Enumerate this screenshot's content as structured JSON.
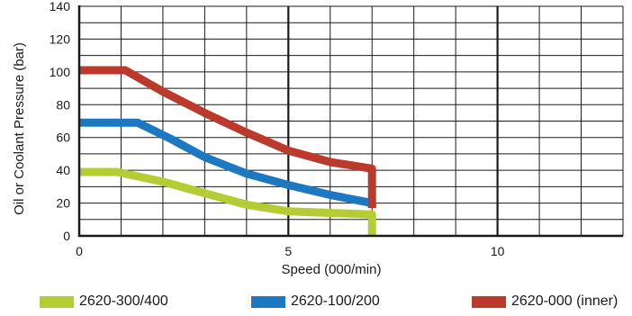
{
  "chart_data": {
    "type": "line",
    "xlabel": "Speed (000/min)",
    "ylabel": "Oil or Coolant Pressure (bar)",
    "xlim": [
      0,
      13
    ],
    "ylim": [
      0,
      140
    ],
    "x_ticks": [
      0,
      5,
      10
    ],
    "y_ticks": [
      0,
      20,
      40,
      60,
      80,
      100,
      120,
      140
    ],
    "grid": true,
    "legend_position": "bottom",
    "series": [
      {
        "name": "2620-300/400",
        "color": "#b5cc34",
        "points": [
          [
            0,
            39
          ],
          [
            0.9,
            39
          ],
          [
            2,
            33
          ],
          [
            3,
            26
          ],
          [
            4,
            19
          ],
          [
            5,
            15
          ],
          [
            6,
            14
          ],
          [
            7,
            13
          ],
          [
            7,
            0
          ]
        ]
      },
      {
        "name": "2620-100/200",
        "color": "#1c79c1",
        "points": [
          [
            0,
            69
          ],
          [
            1.4,
            69
          ],
          [
            2.2,
            59
          ],
          [
            3,
            48
          ],
          [
            4,
            38
          ],
          [
            5,
            31
          ],
          [
            6,
            25
          ],
          [
            7,
            20
          ],
          [
            7,
            17
          ]
        ]
      },
      {
        "name": "2620-000 (inner)",
        "color": "#bb3a2c",
        "points": [
          [
            0,
            101
          ],
          [
            1.1,
            101
          ],
          [
            2,
            88
          ],
          [
            3,
            75
          ],
          [
            4,
            63
          ],
          [
            5,
            52
          ],
          [
            6,
            45
          ],
          [
            7,
            41
          ],
          [
            7,
            17
          ]
        ]
      }
    ]
  }
}
